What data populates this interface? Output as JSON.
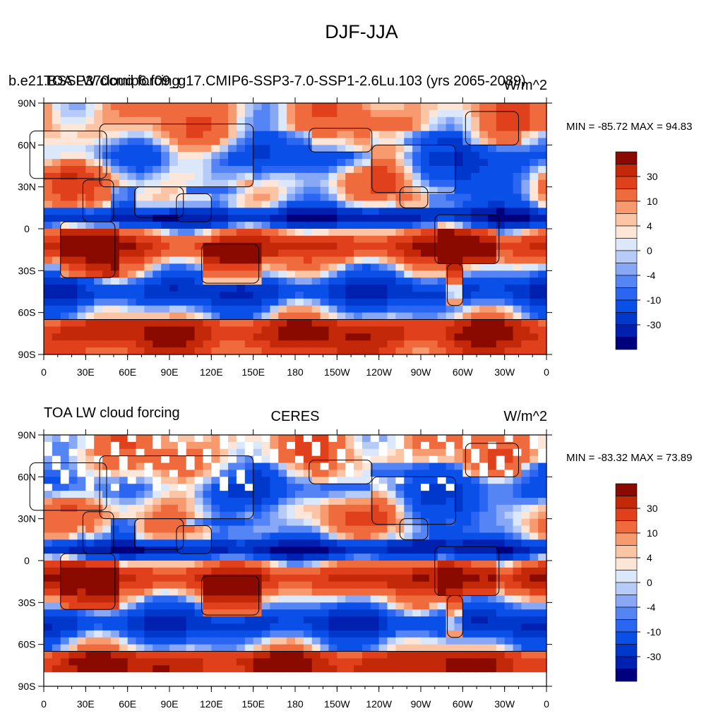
{
  "figure": {
    "title": "DJF-JJA"
  },
  "colors": {
    "palette": [
      "#00007f",
      "#0020b0",
      "#0038cc",
      "#0a50e8",
      "#2a66f2",
      "#5584f5",
      "#88a8f6",
      "#b6cbf8",
      "#dbe8fb",
      "#fde5d8",
      "#fbc4a4",
      "#f79a6f",
      "#ef6a3d",
      "#e0411c",
      "#c32808",
      "#8b0a00"
    ],
    "ocean_fill": "#dfe9fb",
    "missing": "#ffffff"
  },
  "chart_data": [
    {
      "type": "heatmap",
      "subtype": "global-lat-lon-filled-contour",
      "left_title": "b.e21.BSSP370cmip6.f09_g17.CMIP6-SSP3-7.0-SSP1-2.6Lu.103 (yrs 2065-2089)",
      "left_title_overlap": "TOA LW cloud forcing",
      "center_title": "",
      "right_title": "W/m^2",
      "min_max_text": "MIN = -85.72 MAX =  94.83",
      "min": -85.72,
      "max": 94.83,
      "xlabel": "",
      "ylabel": "",
      "x_ticks": [
        "0",
        "30E",
        "60E",
        "90E",
        "120E",
        "150E",
        "180",
        "150W",
        "120W",
        "90W",
        "60W",
        "30W",
        "0"
      ],
      "y_ticks": [
        "90N",
        "60N",
        "30N",
        "0",
        "30S",
        "60S",
        "90S"
      ],
      "xlim": [
        0,
        360
      ],
      "ylim": [
        -90,
        90
      ],
      "colorbar": {
        "labels": [
          "30",
          "10",
          "4",
          "0",
          "-4",
          "-10",
          "-30"
        ]
      },
      "missing_data": false
    },
    {
      "type": "heatmap",
      "subtype": "global-lat-lon-filled-contour",
      "left_title": "TOA LW cloud forcing",
      "left_title_overlap": "",
      "center_title": "CERES",
      "right_title": "W/m^2",
      "min_max_text": "MIN = -83.32 MAX =  73.89",
      "min": -83.32,
      "max": 73.89,
      "xlabel": "",
      "ylabel": "",
      "x_ticks": [
        "0",
        "30E",
        "60E",
        "90E",
        "120E",
        "150E",
        "180",
        "150W",
        "120W",
        "90W",
        "60W",
        "30W",
        "0"
      ],
      "y_ticks": [
        "90N",
        "60N",
        "30N",
        "0",
        "30S",
        "60S",
        "90S"
      ],
      "xlim": [
        0,
        360
      ],
      "ylim": [
        -90,
        90
      ],
      "colorbar": {
        "labels": [
          "30",
          "10",
          "4",
          "0",
          "-4",
          "-10",
          "-30"
        ]
      },
      "missing_data": true
    }
  ]
}
